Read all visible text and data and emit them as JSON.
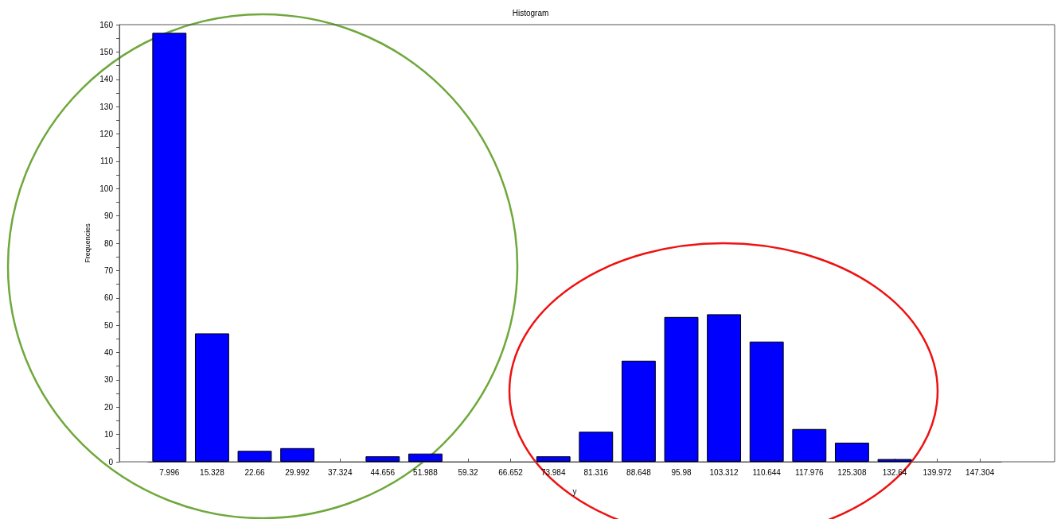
{
  "chart_data": {
    "type": "bar",
    "title": "Histogram",
    "xlabel": "y",
    "ylabel": "Frequencies",
    "categories": [
      "7.996",
      "15.328",
      "22.66",
      "29.992",
      "37.324",
      "44.656",
      "51.988",
      "59.32",
      "66.652",
      "73.984",
      "81.316",
      "88.648",
      "95.98",
      "103.312",
      "110.644",
      "117.976",
      "125.308",
      "132.64",
      "139.972",
      "147.304"
    ],
    "values": [
      157,
      47,
      4,
      5,
      0,
      2,
      3,
      0,
      0,
      2,
      11,
      37,
      53,
      54,
      44,
      12,
      7,
      1,
      0,
      0
    ],
    "color": "#0000ff",
    "ylim": [
      0,
      160
    ],
    "yticks": [
      0,
      10,
      20,
      30,
      40,
      50,
      60,
      70,
      80,
      90,
      100,
      110,
      120,
      130,
      140,
      150,
      160
    ],
    "grid": false
  }
}
